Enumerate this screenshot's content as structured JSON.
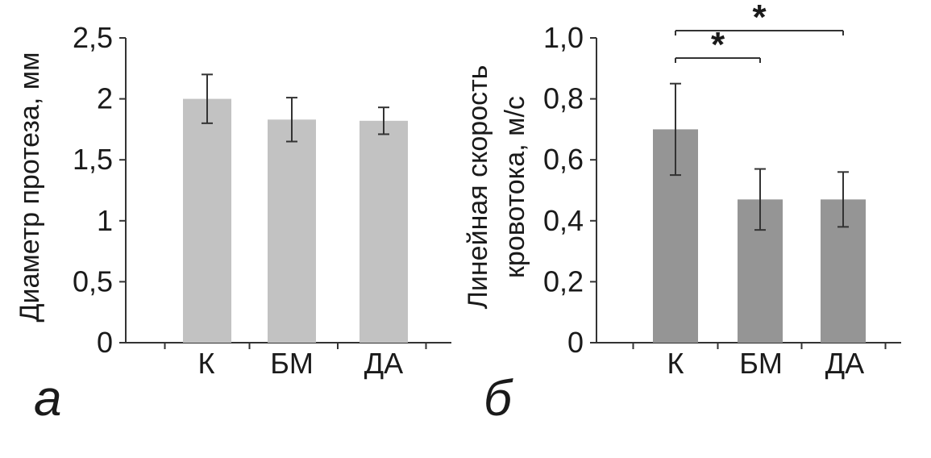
{
  "chart_data": [
    {
      "type": "bar",
      "panel_label": "а",
      "categories": [
        "К",
        "БМ",
        "ДА"
      ],
      "values": [
        2.0,
        1.83,
        1.82
      ],
      "errors": [
        0.2,
        0.18,
        0.11
      ],
      "ylabel": "Диаметр протеза, мм",
      "ylim": [
        0,
        2.5
      ],
      "ticks": [
        0,
        0.5,
        1,
        1.5,
        2,
        2.5
      ],
      "tick_labels": [
        "0",
        "0,5",
        "1",
        "1,5",
        "2",
        "2,5"
      ],
      "bar_color": "#c2c2c2",
      "grid": false
    },
    {
      "type": "bar",
      "panel_label": "б",
      "categories": [
        "К",
        "БМ",
        "ДА"
      ],
      "values": [
        0.7,
        0.47,
        0.47
      ],
      "errors": [
        0.15,
        0.1,
        0.09
      ],
      "ylabel_lines": [
        "Линейная скорость",
        "кровотока, м/с"
      ],
      "ylim": [
        0,
        1.0
      ],
      "ticks": [
        0,
        0.2,
        0.4,
        0.6,
        0.8,
        1.0
      ],
      "tick_labels": [
        "0",
        "0,2",
        "0,4",
        "0,6",
        "0,8",
        "1,0"
      ],
      "bar_color": "#959595",
      "grid": false,
      "significance": [
        {
          "from": "К",
          "to": "БМ",
          "label": "*"
        },
        {
          "from": "К",
          "to": "ДА",
          "label": "*"
        }
      ]
    }
  ]
}
